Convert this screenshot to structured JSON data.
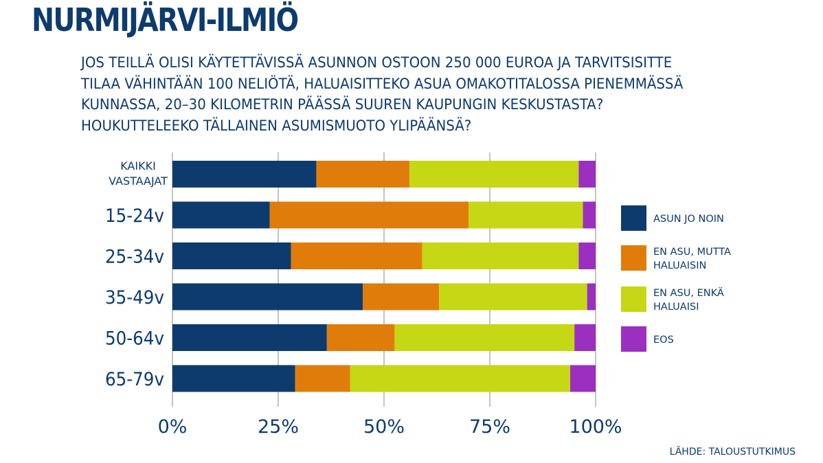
{
  "title": "NURMIJÄRVI-ILMIÖ",
  "question_lines": [
    "JOS TEILLÄ OLISI KÄYTETTÄVISSÄ ASUNNON OSTOON 250 000 EUROA JA TARVITSISITTE",
    "TILAA VÄHINTÄÄN 100 NELIÖTÄ, HALUAISITTEKO ASUA OMAKOTITALOSSA PIENEMMÄSSÄ",
    "KUNNASSA, 20–30 KILOMETRIN PÄÄSSÄ SUUREN KAUPUNGIN KESKUSTASTA?",
    "HOUKUTTELEEKO TÄLLAINEN ASUMISMUOTO YLIPÄÄNSÄ?"
  ],
  "source": "LÄHDE: TALOUSTUTKIMUS",
  "chart_data": {
    "type": "bar",
    "orientation": "horizontal",
    "stacked": true,
    "categories": [
      [
        "KAIKKI",
        "VASTAAJAT"
      ],
      [
        "15-24v"
      ],
      [
        "25-34v"
      ],
      [
        "35-49v"
      ],
      [
        "50-64v"
      ],
      [
        "65-79v"
      ]
    ],
    "series": [
      {
        "name": "ASUN JO NOIN",
        "name_lines": [
          "ASUN JO NOIN"
        ],
        "color": "#0d3b6e",
        "values": [
          34,
          23,
          28,
          45,
          36.5,
          29
        ]
      },
      {
        "name": "EN ASU, MUTTA HALUAISIN",
        "name_lines": [
          "EN ASU, MUTTA",
          "HALUAISIN"
        ],
        "color": "#e07c0a",
        "values": [
          22,
          47,
          31,
          18,
          16,
          13
        ]
      },
      {
        "name": "EN ASU, ENKÄ HALUAISI",
        "name_lines": [
          "EN ASU, ENKÄ",
          "HALUAISI"
        ],
        "color": "#c5d715",
        "values": [
          40,
          27,
          37,
          35,
          42.5,
          52
        ]
      },
      {
        "name": "EOS",
        "name_lines": [
          "EOS"
        ],
        "color": "#9b30c0",
        "values": [
          4,
          3,
          4,
          2,
          5,
          6
        ]
      }
    ],
    "xlim": [
      0,
      100
    ],
    "xticks": [
      0,
      25,
      50,
      75,
      100
    ],
    "xtick_labels": [
      "0%",
      "25%",
      "50%",
      "75%",
      "100%"
    ],
    "grid": true,
    "legend": "right"
  }
}
